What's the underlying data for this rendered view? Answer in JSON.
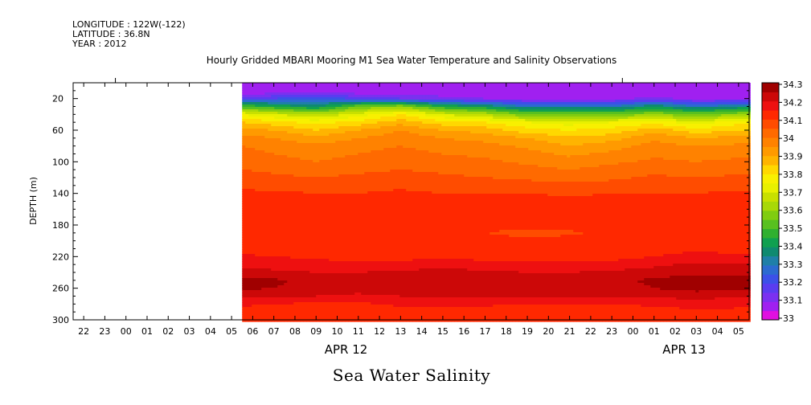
{
  "header": {
    "longitude": "LONGITUDE : 122W(-122)",
    "latitude": "LATITUDE : 36.8N",
    "year": "YEAR : 2012"
  },
  "chart_data": {
    "type": "heatmap",
    "title": "Hourly Gridded MBARI Mooring M1 Sea Water Temperature and Salinity Observations",
    "caption": "Sea Water Salinity",
    "ylabel": "DEPTH (m)",
    "ylim": [
      300,
      0
    ],
    "y_ticks": [
      20,
      60,
      100,
      140,
      180,
      220,
      260,
      300
    ],
    "x_ticks": [
      "22",
      "23",
      "00",
      "01",
      "02",
      "03",
      "04",
      "05",
      "06",
      "07",
      "08",
      "09",
      "10",
      "11",
      "12",
      "13",
      "14",
      "15",
      "16",
      "17",
      "18",
      "19",
      "20",
      "21",
      "22",
      "23",
      "00",
      "01",
      "02",
      "03",
      "04",
      "05"
    ],
    "date_labels": [
      {
        "label": "APR 12",
        "hour_index": 12
      },
      {
        "label": "APR 13",
        "hour_index": 28
      }
    ],
    "data_start_hour_index": 7.5,
    "colorbar": {
      "ticks": [
        "34.3",
        "34.2",
        "34.1",
        "34",
        "33.9",
        "33.8",
        "33.7",
        "33.6",
        "33.5",
        "33.4",
        "33.3",
        "33.2",
        "33.1",
        "33"
      ],
      "levels": [
        {
          "min": 33.0,
          "color": "#e010e0"
        },
        {
          "min": 33.05,
          "color": "#a020f0"
        },
        {
          "min": 33.1,
          "color": "#7b30f0"
        },
        {
          "min": 33.15,
          "color": "#5a3cf0"
        },
        {
          "min": 33.2,
          "color": "#3c50e8"
        },
        {
          "min": 33.25,
          "color": "#2c6ad0"
        },
        {
          "min": 33.3,
          "color": "#1f7fa8"
        },
        {
          "min": 33.35,
          "color": "#0f8a70"
        },
        {
          "min": 33.4,
          "color": "#10a050"
        },
        {
          "min": 33.45,
          "color": "#30b030"
        },
        {
          "min": 33.5,
          "color": "#58c020"
        },
        {
          "min": 33.55,
          "color": "#80cc10"
        },
        {
          "min": 33.6,
          "color": "#a8d808"
        },
        {
          "min": 33.65,
          "color": "#c8e000"
        },
        {
          "min": 33.7,
          "color": "#e8f000"
        },
        {
          "min": 33.75,
          "color": "#f8f000"
        },
        {
          "min": 33.8,
          "color": "#ffd800"
        },
        {
          "min": 33.85,
          "color": "#ffb400"
        },
        {
          "min": 33.9,
          "color": "#ff9a00"
        },
        {
          "min": 33.95,
          "color": "#ff8200"
        },
        {
          "min": 34.0,
          "color": "#ff6a00"
        },
        {
          "min": 34.05,
          "color": "#ff4c00"
        },
        {
          "min": 34.1,
          "color": "#ff2800"
        },
        {
          "min": 34.15,
          "color": "#ee1010"
        },
        {
          "min": 34.2,
          "color": "#cc0808"
        },
        {
          "min": 34.25,
          "color": "#a00000"
        }
      ]
    },
    "depths": [
      10,
      20,
      30,
      40,
      50,
      60,
      70,
      80,
      90,
      100,
      110,
      120,
      130,
      140,
      150,
      160,
      170,
      180,
      190,
      200,
      210,
      220,
      230,
      240,
      250,
      260,
      270,
      280,
      290,
      300
    ],
    "time_indices": [
      7.5,
      9,
      11,
      13,
      15,
      17,
      19,
      21,
      23,
      25,
      27,
      29,
      31
    ],
    "salinity": [
      [
        33.05,
        33.05,
        33.05,
        33.05,
        33.05,
        33.05,
        33.05,
        33.05,
        33.05,
        33.05,
        33.05,
        33.05,
        33.05
      ],
      [
        33.15,
        33.2,
        33.25,
        33.18,
        33.15,
        33.12,
        33.1,
        33.08,
        33.08,
        33.08,
        33.12,
        33.08,
        33.08
      ],
      [
        33.5,
        33.45,
        33.38,
        33.55,
        33.6,
        33.45,
        33.4,
        33.3,
        33.3,
        33.3,
        33.4,
        33.3,
        33.35
      ],
      [
        33.75,
        33.7,
        33.65,
        33.72,
        33.8,
        33.7,
        33.65,
        33.55,
        33.55,
        33.55,
        33.6,
        33.55,
        33.6
      ],
      [
        33.85,
        33.82,
        33.78,
        33.82,
        33.88,
        33.82,
        33.8,
        33.75,
        33.72,
        33.75,
        33.78,
        33.72,
        33.78
      ],
      [
        33.92,
        33.9,
        33.85,
        33.9,
        33.95,
        33.9,
        33.88,
        33.82,
        33.8,
        33.82,
        33.88,
        33.82,
        33.85
      ],
      [
        33.97,
        33.95,
        33.92,
        33.95,
        33.98,
        33.95,
        33.93,
        33.9,
        33.86,
        33.88,
        33.94,
        33.9,
        33.92
      ],
      [
        34.0,
        33.98,
        33.96,
        33.98,
        34.0,
        33.98,
        33.97,
        33.94,
        33.9,
        33.93,
        33.97,
        33.95,
        33.96
      ],
      [
        34.02,
        34.0,
        33.98,
        34.0,
        34.02,
        34.0,
        33.99,
        33.97,
        33.94,
        33.96,
        33.99,
        33.98,
        33.99
      ],
      [
        34.03,
        34.02,
        34.0,
        34.02,
        34.03,
        34.02,
        34.01,
        33.99,
        33.97,
        33.99,
        34.01,
        34.0,
        34.01
      ],
      [
        34.05,
        34.04,
        34.03,
        34.04,
        34.05,
        34.04,
        34.03,
        34.02,
        34.0,
        34.02,
        34.03,
        34.03,
        34.03
      ],
      [
        34.07,
        34.06,
        34.05,
        34.06,
        34.07,
        34.06,
        34.05,
        34.04,
        34.03,
        34.04,
        34.06,
        34.05,
        34.06
      ],
      [
        34.09,
        34.08,
        34.08,
        34.08,
        34.09,
        34.08,
        34.08,
        34.07,
        34.06,
        34.07,
        34.08,
        34.08,
        34.08
      ],
      [
        34.11,
        34.11,
        34.1,
        34.1,
        34.11,
        34.1,
        34.1,
        34.1,
        34.09,
        34.1,
        34.1,
        34.1,
        34.11
      ],
      [
        34.14,
        34.13,
        34.12,
        34.12,
        34.12,
        34.12,
        34.12,
        34.12,
        34.12,
        34.12,
        34.13,
        34.15,
        34.13
      ],
      [
        34.15,
        34.14,
        34.12,
        34.12,
        34.12,
        34.12,
        34.12,
        34.12,
        34.12,
        34.12,
        34.13,
        34.14,
        34.13
      ],
      [
        34.13,
        34.13,
        34.12,
        34.12,
        34.12,
        34.12,
        34.12,
        34.12,
        34.12,
        34.12,
        34.12,
        34.13,
        34.12
      ],
      [
        34.12,
        34.12,
        34.12,
        34.12,
        34.12,
        34.12,
        34.12,
        34.12,
        34.12,
        34.12,
        34.12,
        34.12,
        34.12
      ],
      [
        34.12,
        34.12,
        34.12,
        34.12,
        34.12,
        34.12,
        34.1,
        34.08,
        34.09,
        34.12,
        34.12,
        34.12,
        34.12
      ],
      [
        34.12,
        34.12,
        34.12,
        34.12,
        34.12,
        34.12,
        34.12,
        34.12,
        34.12,
        34.12,
        34.12,
        34.12,
        34.12
      ],
      [
        34.13,
        34.12,
        34.12,
        34.12,
        34.12,
        34.12,
        34.12,
        34.12,
        34.12,
        34.12,
        34.13,
        34.14,
        34.13
      ],
      [
        34.16,
        34.15,
        34.14,
        34.13,
        34.13,
        34.14,
        34.13,
        34.13,
        34.13,
        34.13,
        34.15,
        34.17,
        34.16
      ],
      [
        34.19,
        34.18,
        34.17,
        34.16,
        34.17,
        34.18,
        34.17,
        34.16,
        34.16,
        34.17,
        34.19,
        34.21,
        34.2
      ],
      [
        34.22,
        34.21,
        34.2,
        34.2,
        34.21,
        34.22,
        34.21,
        34.2,
        34.2,
        34.21,
        34.22,
        34.24,
        34.23
      ],
      [
        34.27,
        34.26,
        34.23,
        34.22,
        34.24,
        34.24,
        34.24,
        34.22,
        34.22,
        34.24,
        34.26,
        34.28,
        34.27
      ],
      [
        34.26,
        34.25,
        34.23,
        34.22,
        34.23,
        34.23,
        34.23,
        34.22,
        34.22,
        34.23,
        34.25,
        34.27,
        34.26
      ],
      [
        34.21,
        34.2,
        34.2,
        34.19,
        34.2,
        34.2,
        34.2,
        34.2,
        34.2,
        34.2,
        34.21,
        34.22,
        34.21
      ],
      [
        34.16,
        34.15,
        34.14,
        34.14,
        34.16,
        34.16,
        34.16,
        34.15,
        34.15,
        34.15,
        34.16,
        34.17,
        34.16
      ],
      [
        34.13,
        34.12,
        34.12,
        34.12,
        34.13,
        34.13,
        34.12,
        34.12,
        34.12,
        34.12,
        34.13,
        34.14,
        34.14
      ],
      [
        34.12,
        34.12,
        34.12,
        34.12,
        34.12,
        34.12,
        34.12,
        34.12,
        34.12,
        34.12,
        34.12,
        34.12,
        34.12
      ]
    ]
  }
}
